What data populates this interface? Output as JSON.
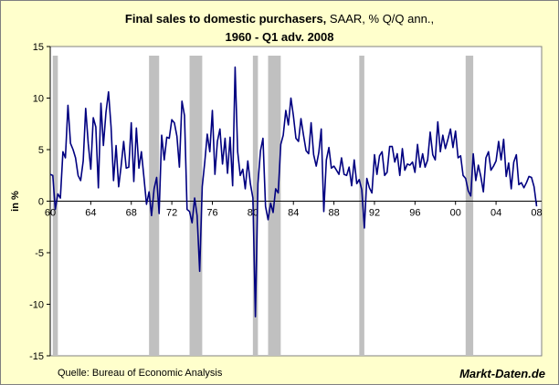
{
  "chart_data": {
    "type": "line",
    "title_main": "Final sales to domestic purchasers,",
    "title_suffix": " SAAR, % Q/Q ann.,",
    "title_line2": "1960 - Q1 adv. 2008",
    "ylabel": "in %",
    "xlabel": "",
    "ylim": [
      -15,
      15
    ],
    "xlim": [
      1960,
      2008.5
    ],
    "grid": false,
    "y_ticks": [
      15,
      10,
      5,
      0,
      -5,
      -10,
      -15
    ],
    "x_ticks": [
      "60",
      "64",
      "68",
      "72",
      "76",
      "80",
      "84",
      "88",
      "92",
      "96",
      "00",
      "04",
      "08"
    ],
    "x_tick_years": [
      1960,
      1964,
      1968,
      1972,
      1976,
      1980,
      1984,
      1988,
      1992,
      1996,
      2000,
      2004,
      2008
    ],
    "recession_bands": [
      [
        1960.25,
        1960.75
      ],
      [
        1969.75,
        1970.75
      ],
      [
        1973.75,
        1975.0
      ],
      [
        1980.0,
        1980.5
      ],
      [
        1981.5,
        1982.75
      ],
      [
        1990.5,
        1991.0
      ],
      [
        2001.0,
        2001.75
      ]
    ],
    "series": [
      {
        "color": "#000080",
        "x": [
          1960.0,
          1960.25,
          1960.5,
          1960.75,
          1961.0,
          1961.25,
          1961.5,
          1961.75,
          1962.0,
          1962.25,
          1962.5,
          1962.75,
          1963.0,
          1963.25,
          1963.5,
          1963.75,
          1964.0,
          1964.25,
          1964.5,
          1964.75,
          1965.0,
          1965.25,
          1965.5,
          1965.75,
          1966.0,
          1966.25,
          1966.5,
          1966.75,
          1967.0,
          1967.25,
          1967.5,
          1967.75,
          1968.0,
          1968.25,
          1968.5,
          1968.75,
          1969.0,
          1969.25,
          1969.5,
          1969.75,
          1970.0,
          1970.25,
          1970.5,
          1970.75,
          1971.0,
          1971.25,
          1971.5,
          1971.75,
          1972.0,
          1972.25,
          1972.5,
          1972.75,
          1973.0,
          1973.25,
          1973.5,
          1973.75,
          1974.0,
          1974.25,
          1974.5,
          1974.75,
          1975.0,
          1975.25,
          1975.5,
          1975.75,
          1976.0,
          1976.25,
          1976.5,
          1976.75,
          1977.0,
          1977.25,
          1977.5,
          1977.75,
          1978.0,
          1978.25,
          1978.5,
          1978.75,
          1979.0,
          1979.25,
          1979.5,
          1979.75,
          1980.0,
          1980.25,
          1980.5,
          1980.75,
          1981.0,
          1981.25,
          1981.5,
          1981.75,
          1982.0,
          1982.25,
          1982.5,
          1982.75,
          1983.0,
          1983.25,
          1983.5,
          1983.75,
          1984.0,
          1984.25,
          1984.5,
          1984.75,
          1985.0,
          1985.25,
          1985.5,
          1985.75,
          1986.0,
          1986.25,
          1986.5,
          1986.75,
          1987.0,
          1987.25,
          1987.5,
          1987.75,
          1988.0,
          1988.25,
          1988.5,
          1988.75,
          1989.0,
          1989.25,
          1989.5,
          1989.75,
          1990.0,
          1990.25,
          1990.5,
          1990.75,
          1991.0,
          1991.25,
          1991.5,
          1991.75,
          1992.0,
          1992.25,
          1992.5,
          1992.75,
          1993.0,
          1993.25,
          1993.5,
          1993.75,
          1994.0,
          1994.25,
          1994.5,
          1994.75,
          1995.0,
          1995.25,
          1995.5,
          1995.75,
          1996.0,
          1996.25,
          1996.5,
          1996.75,
          1997.0,
          1997.25,
          1997.5,
          1997.75,
          1998.0,
          1998.25,
          1998.5,
          1998.75,
          1999.0,
          1999.25,
          1999.5,
          1999.75,
          2000.0,
          2000.25,
          2000.5,
          2000.75,
          2001.0,
          2001.25,
          2001.5,
          2001.75,
          2002.0,
          2002.25,
          2002.5,
          2002.75,
          2003.0,
          2003.25,
          2003.5,
          2003.75,
          2004.0,
          2004.25,
          2004.5,
          2004.75,
          2005.0,
          2005.25,
          2005.5,
          2005.75,
          2006.0,
          2006.25,
          2006.5,
          2006.75,
          2007.0,
          2007.25,
          2007.5,
          2007.75,
          2008.0
        ],
        "values": [
          2.6,
          2.5,
          -0.8,
          0.7,
          0.3,
          4.8,
          4.2,
          9.3,
          5.6,
          5.0,
          4.2,
          2.5,
          2.0,
          3.9,
          9.0,
          5.6,
          3.1,
          8.1,
          7.2,
          1.3,
          9.5,
          5.4,
          8.6,
          10.6,
          7.2,
          2.0,
          5.4,
          1.4,
          3.4,
          5.8,
          3.2,
          3.3,
          7.6,
          1.9,
          7.1,
          3.2,
          4.8,
          2.3,
          -0.3,
          0.9,
          -1.4,
          1.2,
          2.3,
          -1.2,
          6.4,
          4.0,
          6.2,
          6.1,
          7.9,
          7.6,
          6.3,
          3.3,
          9.7,
          8.3,
          -0.8,
          -1.0,
          -2.1,
          0.3,
          -1.4,
          -6.8,
          1.4,
          3.8,
          6.5,
          4.8,
          8.8,
          2.6,
          5.8,
          7.0,
          3.6,
          6.1,
          2.7,
          6.2,
          1.5,
          13.0,
          4.8,
          2.5,
          3.1,
          1.2,
          3.9,
          1.7,
          0.3,
          -11.2,
          1.7,
          4.9,
          6.1,
          -0.5,
          -1.8,
          -0.2,
          -1.1,
          1.2,
          0.8,
          5.5,
          6.4,
          8.8,
          7.4,
          10.0,
          8.3,
          6.1,
          5.8,
          8.0,
          6.4,
          4.9,
          4.6,
          7.6,
          4.5,
          3.4,
          4.7,
          7.0,
          -1.0,
          4.0,
          5.2,
          3.2,
          3.4,
          3.0,
          2.6,
          4.2,
          2.6,
          2.5,
          3.3,
          1.5,
          4.0,
          1.7,
          2.1,
          1.1,
          -2.6,
          2.2,
          1.3,
          0.8,
          4.5,
          2.6,
          4.4,
          4.8,
          2.5,
          2.8,
          5.3,
          5.3,
          3.8,
          4.6,
          2.5,
          5.1,
          3.0,
          3.6,
          3.5,
          3.8,
          2.8,
          5.5,
          3.3,
          4.6,
          3.3,
          4.0,
          6.7,
          4.5,
          4.0,
          7.7,
          4.8,
          6.4,
          5.1,
          6.0,
          7.0,
          5.2,
          6.8,
          4.2,
          4.4,
          2.5,
          2.2,
          1.0,
          0.5,
          4.6,
          2.0,
          3.5,
          2.4,
          0.9,
          4.2,
          4.8,
          3.0,
          3.4,
          3.9,
          5.8,
          4.0,
          6.0,
          2.4,
          3.7,
          1.2,
          3.8,
          4.5,
          1.6,
          1.8,
          1.3,
          1.8,
          2.4,
          2.3,
          1.4,
          -0.5
        ]
      }
    ]
  },
  "footer": {
    "source": "Quelle: Bureau of Economic Analysis",
    "brand": "Markt-Daten.de"
  },
  "colors": {
    "background": "#ffffcc",
    "plot_area": "#ffffff",
    "recession_band": "#c0c0c0",
    "line": "#000080"
  }
}
